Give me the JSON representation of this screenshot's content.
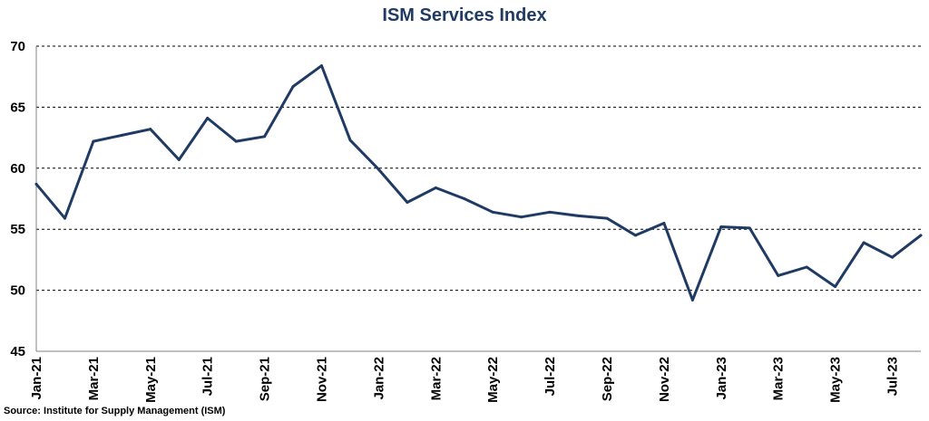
{
  "chart_data": {
    "type": "line",
    "title": "ISM Services Index",
    "source": "Source: Institute for Supply Management (ISM)",
    "xlabel": "",
    "ylabel": "",
    "ylim": [
      45,
      70
    ],
    "yticks": [
      45,
      50,
      55,
      60,
      65,
      70
    ],
    "grid": "horizontal dashed",
    "line_color": "#1f3b63",
    "x": [
      "Jan-21",
      "Feb-21",
      "Mar-21",
      "Apr-21",
      "May-21",
      "Jun-21",
      "Jul-21",
      "Aug-21",
      "Sep-21",
      "Oct-21",
      "Nov-21",
      "Dec-21",
      "Jan-22",
      "Feb-22",
      "Mar-22",
      "Apr-22",
      "May-22",
      "Jun-22",
      "Jul-22",
      "Aug-22",
      "Sep-22",
      "Oct-22",
      "Nov-22",
      "Dec-22",
      "Jan-23",
      "Feb-23",
      "Mar-23",
      "Apr-23",
      "May-23",
      "Jun-23",
      "Jul-23",
      "Aug-23"
    ],
    "x_tick_labels": [
      "Jan-21",
      "Mar-21",
      "May-21",
      "Jul-21",
      "Sep-21",
      "Nov-21",
      "Jan-22",
      "Mar-22",
      "May-22",
      "Jul-22",
      "Sep-22",
      "Nov-22",
      "Jan-23",
      "Mar-23",
      "May-23",
      "Jul-23"
    ],
    "series": [
      {
        "values": [
          58.7,
          55.9,
          62.2,
          62.7,
          63.2,
          60.7,
          64.1,
          62.2,
          62.6,
          66.7,
          68.4,
          62.3,
          59.9,
          57.2,
          58.4,
          57.5,
          56.4,
          56.0,
          56.4,
          56.1,
          55.9,
          54.5,
          55.5,
          49.2,
          55.2,
          55.1,
          51.2,
          51.9,
          50.3,
          53.9,
          52.7,
          54.5
        ]
      }
    ]
  }
}
